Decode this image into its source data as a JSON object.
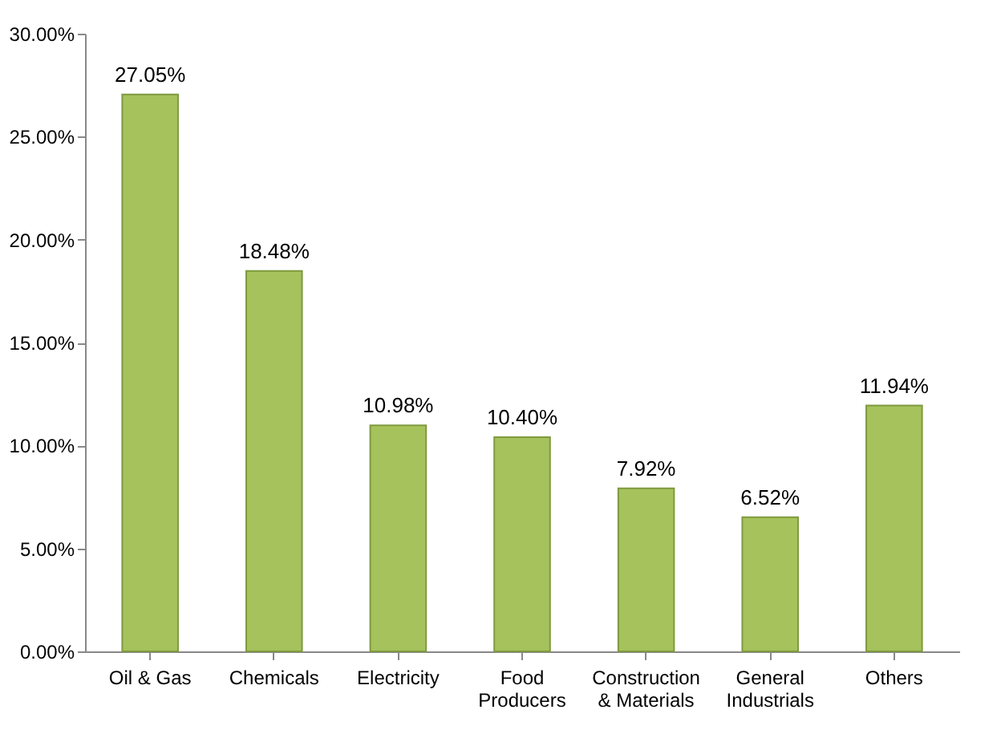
{
  "chart_data": {
    "type": "bar",
    "categories": [
      "Oil & Gas",
      "Chemicals",
      "Electricity",
      "Food\nProducers",
      "Construction\n& Materials",
      "General\nIndustrials",
      "Others"
    ],
    "values": [
      27.05,
      18.48,
      10.98,
      10.4,
      7.92,
      6.52,
      11.94
    ],
    "value_labels": [
      "27.05%",
      "18.48%",
      "10.98%",
      "10.40%",
      "7.92%",
      "6.52%",
      "11.94%"
    ],
    "color": "#a5c25c",
    "ylim": [
      0,
      30
    ],
    "yticks": [
      {
        "value": 0,
        "label": "0.00%"
      },
      {
        "value": 5,
        "label": "5.00%"
      },
      {
        "value": 10,
        "label": "10.00%"
      },
      {
        "value": 15,
        "label": "15.00%"
      },
      {
        "value": 20,
        "label": "20.00%"
      },
      {
        "value": 25,
        "label": "25.00%"
      },
      {
        "value": 30,
        "label": "30.00%"
      }
    ],
    "grid": false
  }
}
